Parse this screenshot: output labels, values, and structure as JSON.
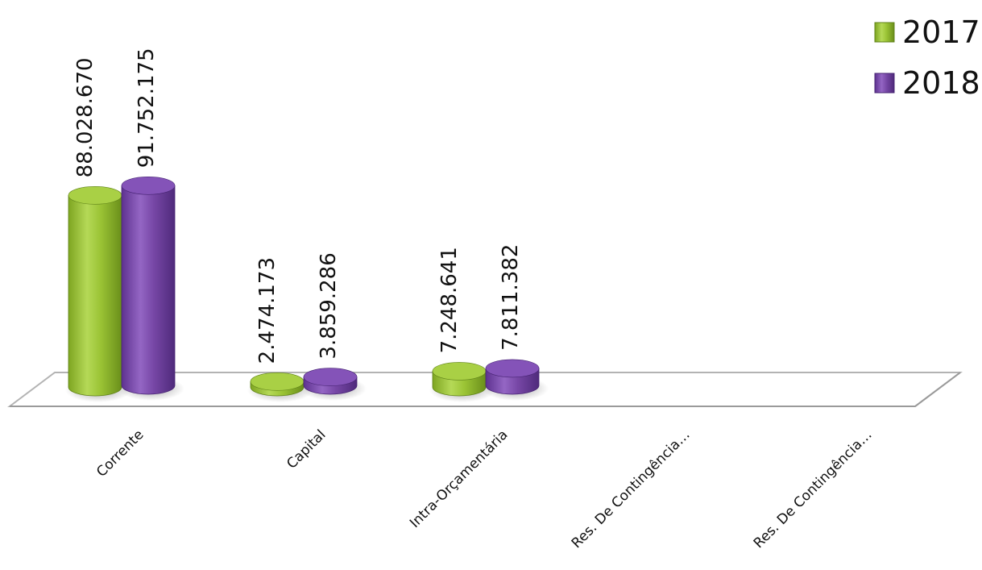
{
  "chart_data": {
    "type": "bar",
    "categories": [
      "Corrente",
      "Capital",
      "Intra-Orçamentária",
      "Res. De Contingência…",
      "Res. De Contingência…"
    ],
    "series": [
      {
        "name": "2017",
        "values": [
          88028670,
          2474173,
          7248641,
          0,
          0
        ],
        "labels": [
          "88.028.670",
          "2.474.173",
          "7.248.641",
          "",
          ""
        ],
        "color": "#9bc435"
      },
      {
        "name": "2018",
        "values": [
          91752175,
          3859286,
          7811382,
          0,
          0
        ],
        "labels": [
          "91.752.175",
          "3.859.286",
          "7.811.382",
          "",
          ""
        ],
        "color": "#7747a6"
      }
    ],
    "ylim": [
      0,
      100000000
    ],
    "grid": false,
    "legend": "top-right"
  }
}
